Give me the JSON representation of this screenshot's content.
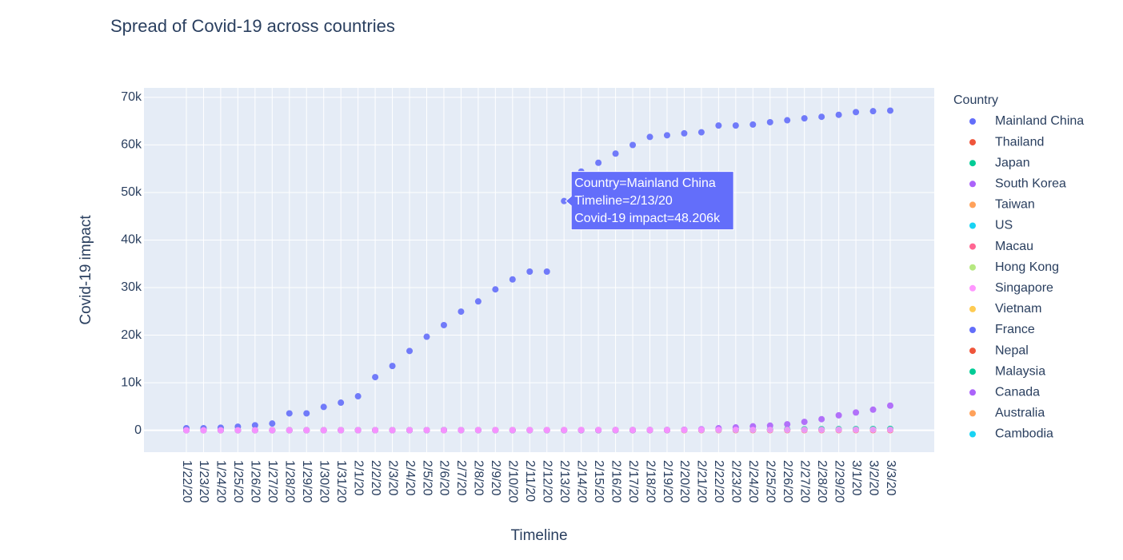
{
  "chart_data": {
    "type": "scatter",
    "title": "Spread of Covid-19 across countries",
    "x_label": "Timeline",
    "y_label": "Covid-19 impact",
    "legend_title": "Country",
    "categories": [
      "1/22/20",
      "1/23/20",
      "1/24/20",
      "1/25/20",
      "1/26/20",
      "1/27/20",
      "1/28/20",
      "1/29/20",
      "1/30/20",
      "1/31/20",
      "2/1/20",
      "2/2/20",
      "2/3/20",
      "2/4/20",
      "2/5/20",
      "2/6/20",
      "2/7/20",
      "2/8/20",
      "2/9/20",
      "2/10/20",
      "2/11/20",
      "2/12/20",
      "2/13/20",
      "2/14/20",
      "2/15/20",
      "2/16/20",
      "2/17/20",
      "2/18/20",
      "2/19/20",
      "2/20/20",
      "2/21/20",
      "2/22/20",
      "2/23/20",
      "2/24/20",
      "2/25/20",
      "2/26/20",
      "2/27/20",
      "2/28/20",
      "2/29/20",
      "3/1/20",
      "3/2/20",
      "3/3/20"
    ],
    "ylim": [
      -4600,
      72000
    ],
    "yticks": [
      {
        "value": 0,
        "label": "0"
      },
      {
        "value": 10000,
        "label": "10k"
      },
      {
        "value": 20000,
        "label": "20k"
      },
      {
        "value": 30000,
        "label": "30k"
      },
      {
        "value": 40000,
        "label": "40k"
      },
      {
        "value": 50000,
        "label": "50k"
      },
      {
        "value": 60000,
        "label": "60k"
      },
      {
        "value": 70000,
        "label": "70k"
      }
    ],
    "grid": true,
    "legend_position": "right",
    "tooltip": [
      "Country=Mainland China",
      "Timeline=2/13/20",
      "Covid-19 impact=48.206k"
    ],
    "series": [
      {
        "name": "Mainland China",
        "color": "#636efa",
        "values": [
          444,
          444,
          549,
          761,
          1058,
          1423,
          3554,
          3554,
          4903,
          5806,
          7153,
          11177,
          13522,
          16678,
          19665,
          22112,
          24953,
          27100,
          29631,
          31728,
          33366,
          33366,
          48206,
          54406,
          56249,
          58182,
          59989,
          61682,
          62031,
          62442,
          62662,
          64084,
          64084,
          64287,
          64786,
          65187,
          65596,
          65914,
          66337,
          66907,
          67103,
          67217
        ]
      },
      {
        "name": "Thailand",
        "color": "#EF553B",
        "values": [
          2,
          3,
          5,
          7,
          8,
          8,
          14,
          14,
          14,
          19,
          19,
          19,
          19,
          25,
          25,
          25,
          25,
          32,
          32,
          32,
          33,
          33,
          33,
          33,
          33,
          34,
          35,
          35,
          35,
          35,
          35,
          35,
          35,
          35,
          37,
          40,
          40,
          41,
          42,
          42,
          43,
          43
        ]
      },
      {
        "name": "Japan",
        "color": "#00cc96",
        "values": [
          2,
          1,
          2,
          2,
          4,
          4,
          7,
          7,
          11,
          15,
          20,
          20,
          20,
          22,
          22,
          45,
          25,
          25,
          26,
          26,
          26,
          28,
          28,
          29,
          43,
          59,
          66,
          74,
          84,
          94,
          105,
          122,
          147,
          159,
          170,
          189,
          214,
          228,
          241,
          256,
          274,
          293
        ]
      },
      {
        "name": "South Korea",
        "color": "#ab63fa",
        "values": [
          1,
          1,
          2,
          2,
          3,
          4,
          4,
          4,
          4,
          11,
          12,
          15,
          15,
          16,
          19,
          23,
          24,
          24,
          25,
          27,
          28,
          28,
          28,
          28,
          28,
          29,
          30,
          31,
          31,
          104,
          204,
          433,
          602,
          833,
          977,
          1261,
          1766,
          2337,
          3150,
          3736,
          4335,
          5186
        ]
      },
      {
        "name": "Taiwan",
        "color": "#FFA15A",
        "values": [
          null,
          null,
          null,
          null,
          null,
          null,
          null,
          null,
          null,
          null,
          null,
          null,
          null,
          null,
          null,
          null,
          null,
          null,
          null,
          null,
          null,
          null,
          null,
          null,
          null,
          null,
          null,
          null,
          null,
          null,
          null,
          null,
          null,
          null,
          null,
          null,
          null,
          null,
          null,
          null,
          null,
          null
        ]
      },
      {
        "name": "US",
        "color": "#19d3f3",
        "values": [
          null,
          null,
          null,
          null,
          null,
          null,
          null,
          null,
          null,
          null,
          null,
          null,
          null,
          null,
          null,
          null,
          null,
          null,
          null,
          null,
          null,
          null,
          null,
          null,
          null,
          null,
          null,
          null,
          null,
          null,
          null,
          null,
          null,
          null,
          null,
          null,
          null,
          null,
          null,
          null,
          null,
          null
        ]
      },
      {
        "name": "Macau",
        "color": "#FF6692",
        "values": [
          null,
          null,
          null,
          null,
          null,
          null,
          null,
          null,
          null,
          null,
          null,
          null,
          null,
          null,
          null,
          null,
          null,
          null,
          null,
          null,
          null,
          null,
          null,
          null,
          null,
          null,
          null,
          null,
          null,
          null,
          null,
          null,
          null,
          null,
          null,
          null,
          null,
          null,
          null,
          null,
          null,
          null
        ]
      },
      {
        "name": "Hong Kong",
        "color": "#B6E880",
        "values": [
          null,
          null,
          null,
          null,
          null,
          null,
          null,
          null,
          null,
          null,
          null,
          null,
          null,
          null,
          null,
          null,
          null,
          null,
          null,
          null,
          null,
          null,
          null,
          null,
          null,
          null,
          null,
          null,
          null,
          null,
          null,
          null,
          null,
          null,
          null,
          null,
          null,
          null,
          null,
          null,
          null,
          null
        ]
      },
      {
        "name": "Singapore",
        "color": "#FF97FF",
        "values": [
          0,
          1,
          3,
          3,
          4,
          5,
          7,
          7,
          10,
          13,
          16,
          18,
          18,
          24,
          28,
          28,
          30,
          33,
          40,
          45,
          47,
          50,
          58,
          67,
          72,
          75,
          77,
          81,
          84,
          84,
          85,
          85,
          89,
          89,
          91,
          93,
          93,
          93,
          102,
          106,
          108,
          110
        ]
      },
      {
        "name": "Vietnam",
        "color": "#FECB52",
        "values": [
          null,
          null,
          null,
          null,
          null,
          null,
          null,
          null,
          null,
          null,
          null,
          null,
          null,
          null,
          null,
          null,
          null,
          null,
          null,
          null,
          null,
          null,
          null,
          null,
          null,
          null,
          null,
          null,
          null,
          null,
          null,
          null,
          null,
          null,
          null,
          null,
          null,
          null,
          null,
          null,
          null,
          null
        ]
      },
      {
        "name": "France",
        "color": "#636efa",
        "values": [
          null,
          null,
          null,
          null,
          null,
          null,
          null,
          null,
          null,
          null,
          null,
          null,
          null,
          null,
          null,
          null,
          null,
          null,
          null,
          null,
          null,
          null,
          null,
          null,
          null,
          null,
          null,
          null,
          null,
          null,
          null,
          null,
          null,
          null,
          null,
          null,
          null,
          null,
          null,
          null,
          null,
          null
        ]
      },
      {
        "name": "Nepal",
        "color": "#EF553B",
        "values": [
          null,
          null,
          null,
          null,
          null,
          null,
          null,
          null,
          null,
          null,
          null,
          null,
          null,
          null,
          null,
          null,
          null,
          null,
          null,
          null,
          null,
          null,
          null,
          null,
          null,
          null,
          null,
          null,
          null,
          null,
          null,
          null,
          null,
          null,
          null,
          null,
          null,
          null,
          null,
          null,
          null,
          null
        ]
      },
      {
        "name": "Malaysia",
        "color": "#00cc96",
        "values": [
          null,
          null,
          null,
          null,
          null,
          null,
          null,
          null,
          null,
          null,
          null,
          null,
          null,
          null,
          null,
          null,
          null,
          null,
          null,
          null,
          null,
          null,
          null,
          null,
          null,
          null,
          null,
          null,
          null,
          null,
          null,
          null,
          null,
          null,
          null,
          null,
          null,
          null,
          null,
          null,
          null,
          null
        ]
      },
      {
        "name": "Canada",
        "color": "#ab63fa",
        "values": [
          null,
          null,
          null,
          null,
          null,
          null,
          null,
          null,
          null,
          null,
          null,
          null,
          null,
          null,
          null,
          null,
          null,
          null,
          null,
          null,
          null,
          null,
          null,
          null,
          null,
          null,
          null,
          null,
          null,
          null,
          null,
          null,
          null,
          null,
          null,
          null,
          null,
          null,
          null,
          null,
          null,
          null
        ]
      },
      {
        "name": "Australia",
        "color": "#FFA15A",
        "values": [
          null,
          null,
          null,
          null,
          null,
          null,
          null,
          null,
          null,
          null,
          null,
          null,
          null,
          null,
          null,
          null,
          null,
          null,
          null,
          null,
          null,
          null,
          null,
          null,
          null,
          null,
          null,
          null,
          null,
          null,
          null,
          null,
          null,
          null,
          null,
          null,
          null,
          null,
          null,
          null,
          null,
          null
        ]
      },
      {
        "name": "Cambodia",
        "color": "#19d3f3",
        "values": [
          null,
          null,
          null,
          null,
          null,
          null,
          null,
          null,
          null,
          null,
          null,
          null,
          null,
          null,
          null,
          null,
          null,
          null,
          null,
          null,
          null,
          null,
          null,
          null,
          null,
          null,
          null,
          null,
          null,
          null,
          null,
          null,
          null,
          null,
          null,
          null,
          null,
          null,
          null,
          null,
          null,
          null
        ]
      }
    ]
  }
}
